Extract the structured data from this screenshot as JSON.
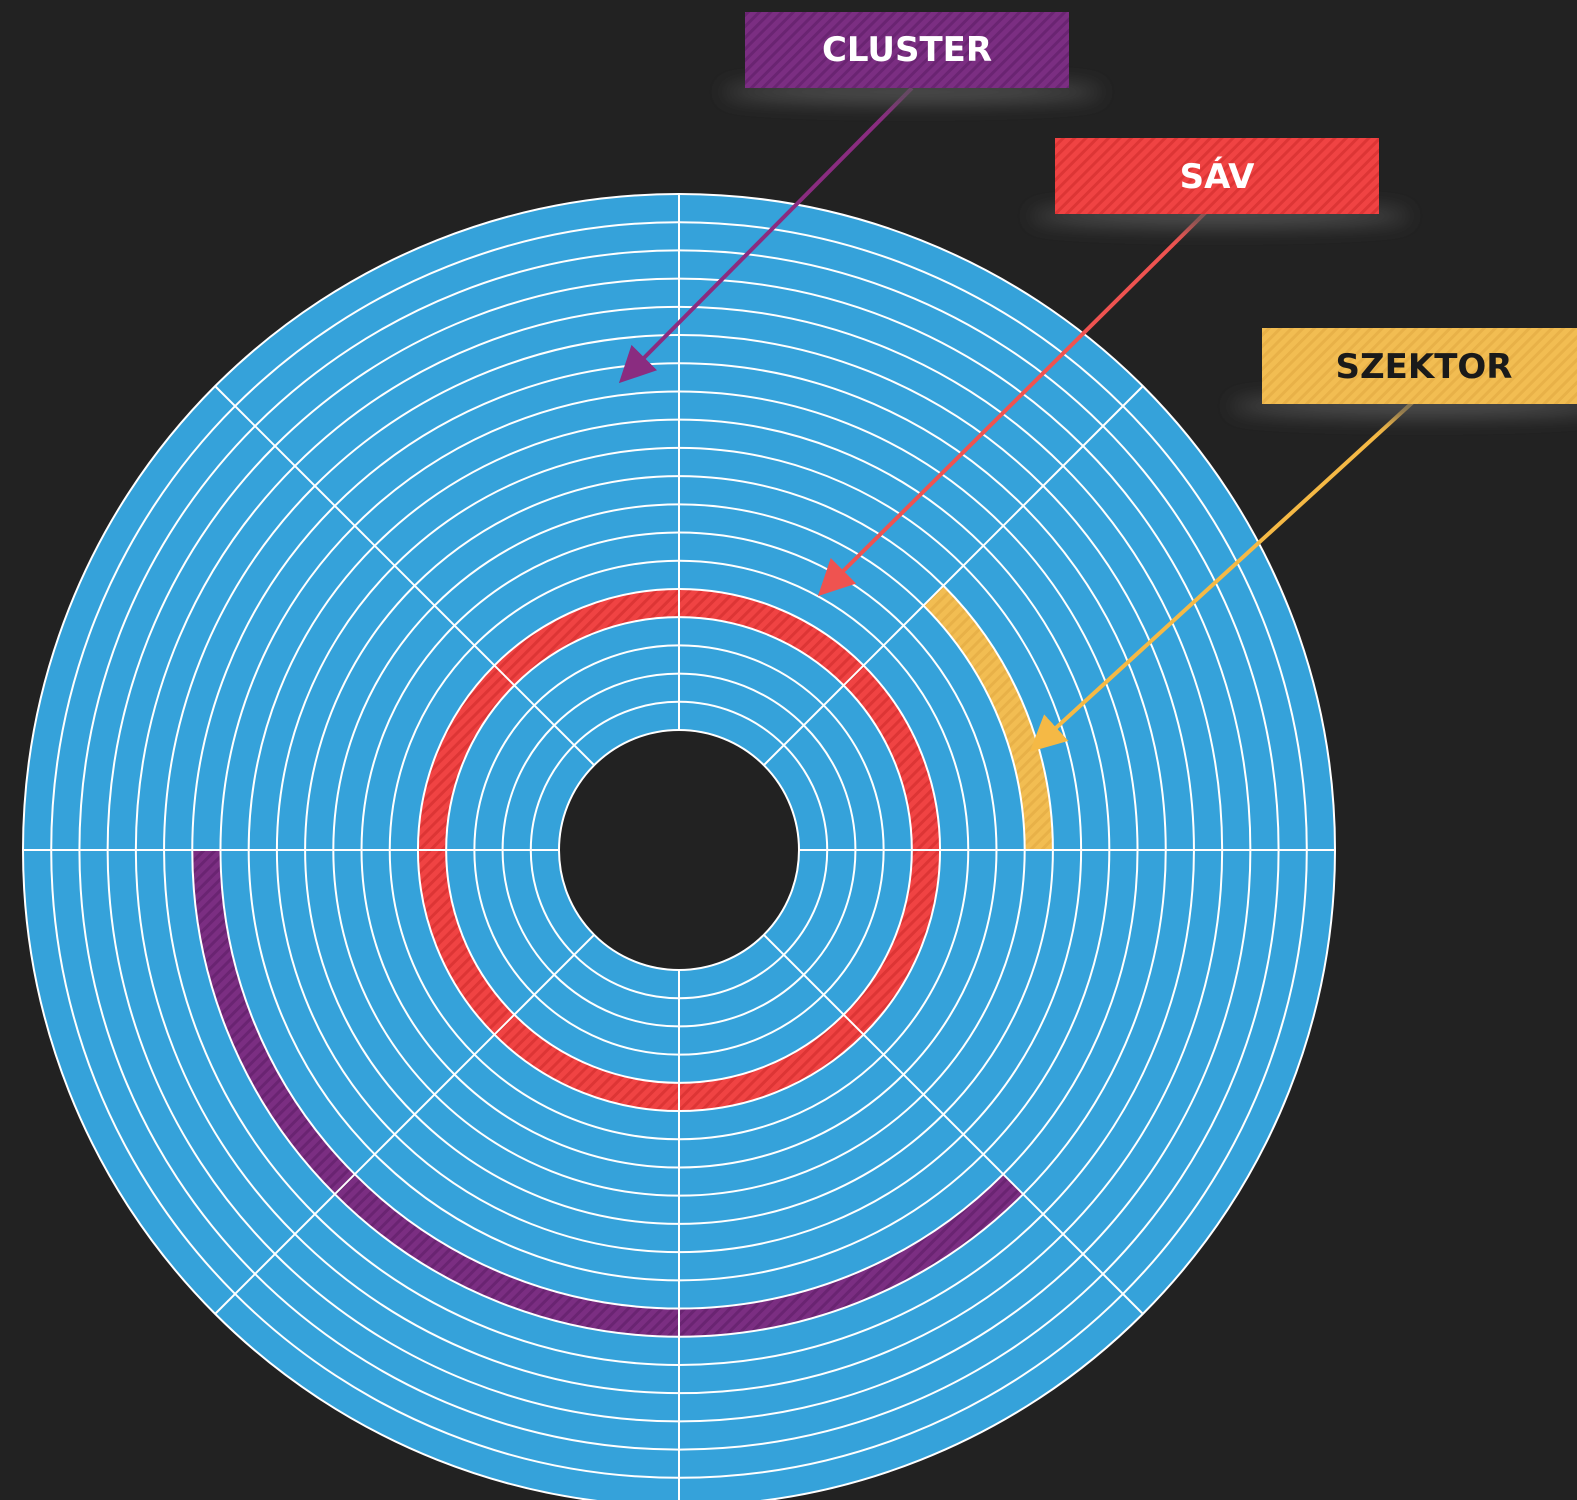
{
  "disk": {
    "platter_color": "#35a2da",
    "line_color": "#ffffff",
    "hole_color": "#222222",
    "track_count": 19,
    "sector_count": 8
  },
  "highlights": {
    "cluster": {
      "color": "#7b2e82",
      "track_index": 12,
      "sectors": [
        4,
        5,
        6
      ]
    },
    "track": {
      "color": "#f04343",
      "track_index": 4
    },
    "sector": {
      "color": "#f2bd52",
      "track_index": 8,
      "sectors": [
        0
      ]
    }
  },
  "labels": {
    "cluster": {
      "text": "CLUSTER",
      "color": "#7b2e82",
      "arrow_color": "#8a2c80"
    },
    "track": {
      "text": "SÁV",
      "color": "#e3414b",
      "arrow_color": "#ef5350"
    },
    "sector": {
      "text": "SZEKTOR",
      "color": "#f3c463",
      "arrow_color": "#f5b945"
    }
  }
}
